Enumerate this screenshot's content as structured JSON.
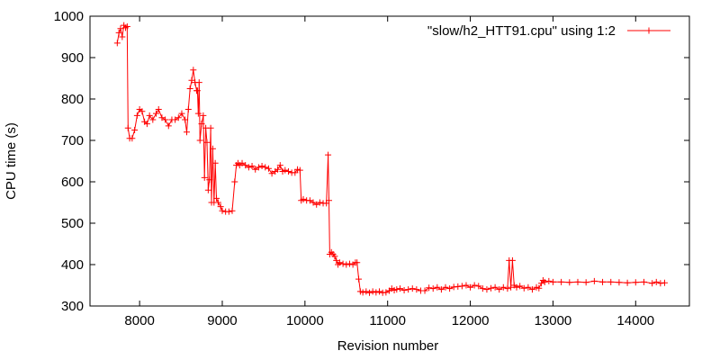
{
  "chart_data": {
    "type": "line",
    "xlabel": "Revision number",
    "ylabel": "CPU time (s)",
    "xlim": [
      7400,
      14650
    ],
    "ylim": [
      300,
      1000
    ],
    "xticks": [
      8000,
      9000,
      10000,
      11000,
      12000,
      13000,
      14000
    ],
    "yticks": [
      300,
      400,
      500,
      600,
      700,
      800,
      900,
      1000
    ],
    "grid": false,
    "legend_position": "top-right",
    "colors": {
      "series": "#ff0000",
      "axes": "#000000"
    },
    "series": [
      {
        "name": "\"slow/h2_HTT91.cpu\" using 1:2",
        "marker": "plus",
        "points": [
          [
            7730,
            935
          ],
          [
            7750,
            960
          ],
          [
            7770,
            970
          ],
          [
            7790,
            950
          ],
          [
            7810,
            978
          ],
          [
            7830,
            972
          ],
          [
            7850,
            975
          ],
          [
            7860,
            730
          ],
          [
            7880,
            705
          ],
          [
            7910,
            705
          ],
          [
            7940,
            725
          ],
          [
            7970,
            760
          ],
          [
            8000,
            775
          ],
          [
            8030,
            770
          ],
          [
            8060,
            745
          ],
          [
            8090,
            740
          ],
          [
            8120,
            760
          ],
          [
            8160,
            750
          ],
          [
            8200,
            765
          ],
          [
            8230,
            775
          ],
          [
            8270,
            755
          ],
          [
            8310,
            750
          ],
          [
            8350,
            735
          ],
          [
            8390,
            750
          ],
          [
            8430,
            750
          ],
          [
            8470,
            755
          ],
          [
            8510,
            765
          ],
          [
            8550,
            750
          ],
          [
            8570,
            720
          ],
          [
            8590,
            775
          ],
          [
            8610,
            825
          ],
          [
            8630,
            845
          ],
          [
            8650,
            870
          ],
          [
            8670,
            840
          ],
          [
            8690,
            820
          ],
          [
            8700,
            820
          ],
          [
            8710,
            765
          ],
          [
            8720,
            840
          ],
          [
            8730,
            700
          ],
          [
            8750,
            740
          ],
          [
            8770,
            760
          ],
          [
            8785,
            610
          ],
          [
            8800,
            730
          ],
          [
            8815,
            695
          ],
          [
            8830,
            580
          ],
          [
            8845,
            605
          ],
          [
            8860,
            730
          ],
          [
            8870,
            550
          ],
          [
            8885,
            680
          ],
          [
            8900,
            550
          ],
          [
            8915,
            645
          ],
          [
            8930,
            560
          ],
          [
            8950,
            550
          ],
          [
            8980,
            540
          ],
          [
            9000,
            530
          ],
          [
            9040,
            528
          ],
          [
            9080,
            528
          ],
          [
            9120,
            530
          ],
          [
            9150,
            600
          ],
          [
            9170,
            640
          ],
          [
            9190,
            645
          ],
          [
            9210,
            640
          ],
          [
            9240,
            645
          ],
          [
            9280,
            640
          ],
          [
            9320,
            635
          ],
          [
            9360,
            638
          ],
          [
            9400,
            630
          ],
          [
            9440,
            635
          ],
          [
            9480,
            638
          ],
          [
            9520,
            635
          ],
          [
            9560,
            632
          ],
          [
            9600,
            620
          ],
          [
            9640,
            625
          ],
          [
            9670,
            630
          ],
          [
            9700,
            640
          ],
          [
            9730,
            625
          ],
          [
            9760,
            628
          ],
          [
            9800,
            625
          ],
          [
            9840,
            622
          ],
          [
            9880,
            622
          ],
          [
            9910,
            630
          ],
          [
            9940,
            628
          ],
          [
            9955,
            555
          ],
          [
            9980,
            558
          ],
          [
            10020,
            555
          ],
          [
            10060,
            555
          ],
          [
            10100,
            550
          ],
          [
            10140,
            545
          ],
          [
            10180,
            550
          ],
          [
            10220,
            548
          ],
          [
            10260,
            548
          ],
          [
            10280,
            665
          ],
          [
            10290,
            555
          ],
          [
            10300,
            425
          ],
          [
            10320,
            430
          ],
          [
            10340,
            425
          ],
          [
            10360,
            420
          ],
          [
            10380,
            410
          ],
          [
            10400,
            400
          ],
          [
            10420,
            405
          ],
          [
            10460,
            402
          ],
          [
            10500,
            400
          ],
          [
            10540,
            402
          ],
          [
            10580,
            400
          ],
          [
            10610,
            405
          ],
          [
            10630,
            405
          ],
          [
            10650,
            365
          ],
          [
            10670,
            335
          ],
          [
            10700,
            333
          ],
          [
            10740,
            335
          ],
          [
            10780,
            332
          ],
          [
            10820,
            335
          ],
          [
            10860,
            333
          ],
          [
            10900,
            335
          ],
          [
            10940,
            332
          ],
          [
            10980,
            333
          ],
          [
            11020,
            337
          ],
          [
            11050,
            342
          ],
          [
            11080,
            338
          ],
          [
            11110,
            340
          ],
          [
            11150,
            342
          ],
          [
            11200,
            338
          ],
          [
            11250,
            340
          ],
          [
            11300,
            342
          ],
          [
            11350,
            340
          ],
          [
            11400,
            337
          ],
          [
            11450,
            337
          ],
          [
            11500,
            344
          ],
          [
            11550,
            342
          ],
          [
            11600,
            345
          ],
          [
            11650,
            340
          ],
          [
            11700,
            345
          ],
          [
            11750,
            342
          ],
          [
            11800,
            346
          ],
          [
            11850,
            347
          ],
          [
            11900,
            348
          ],
          [
            11950,
            350
          ],
          [
            12000,
            345
          ],
          [
            12050,
            350
          ],
          [
            12100,
            348
          ],
          [
            12150,
            342
          ],
          [
            12200,
            340
          ],
          [
            12250,
            343
          ],
          [
            12300,
            345
          ],
          [
            12350,
            340
          ],
          [
            12400,
            345
          ],
          [
            12450,
            342
          ],
          [
            12470,
            410
          ],
          [
            12490,
            345
          ],
          [
            12510,
            410
          ],
          [
            12530,
            350
          ],
          [
            12560,
            345
          ],
          [
            12600,
            348
          ],
          [
            12650,
            343
          ],
          [
            12700,
            345
          ],
          [
            12750,
            340
          ],
          [
            12800,
            345
          ],
          [
            12830,
            343
          ],
          [
            12860,
            355
          ],
          [
            12880,
            362
          ],
          [
            12900,
            358
          ],
          [
            12950,
            360
          ],
          [
            13000,
            358
          ],
          [
            13100,
            358
          ],
          [
            13200,
            357
          ],
          [
            13300,
            358
          ],
          [
            13400,
            357
          ],
          [
            13500,
            360
          ],
          [
            13600,
            358
          ],
          [
            13700,
            358
          ],
          [
            13800,
            357
          ],
          [
            13900,
            356
          ],
          [
            14000,
            357
          ],
          [
            14100,
            358
          ],
          [
            14200,
            355
          ],
          [
            14250,
            358
          ],
          [
            14300,
            355
          ],
          [
            14350,
            356
          ]
        ]
      }
    ]
  }
}
